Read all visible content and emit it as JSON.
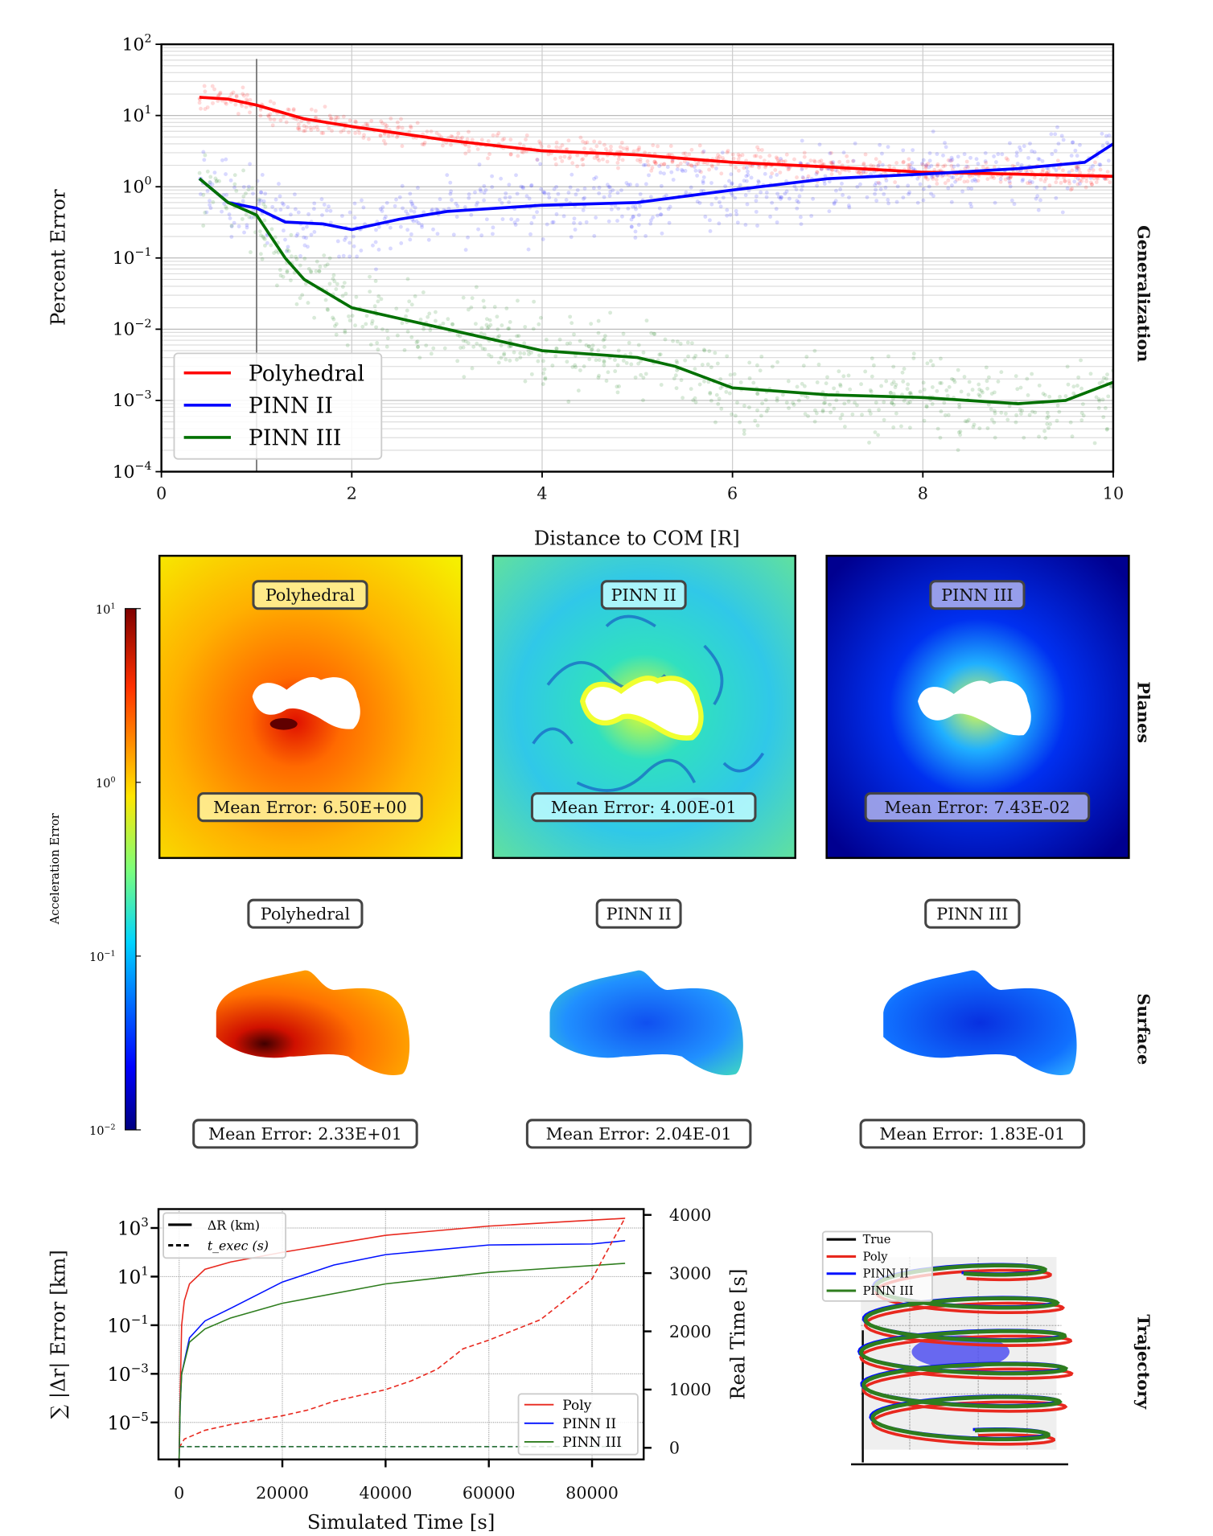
{
  "generalization": {
    "chart_data": {
      "type": "line",
      "xlabel": "Distance to COM [R]",
      "ylabel": "Percent Error",
      "row_label": "Generalization",
      "xlim": [
        0,
        10
      ],
      "ylim": [
        0.0001,
        100
      ],
      "yscale": "log",
      "grid": true,
      "legend_position": "lower-left",
      "x_ticks": [
        "0",
        "2",
        "4",
        "6",
        "8",
        "10"
      ],
      "y_ticks": [
        {
          "base": "10",
          "exp": "2"
        },
        {
          "base": "10",
          "exp": "1"
        },
        {
          "base": "10",
          "exp": "0"
        },
        {
          "base": "10",
          "exp": "−1"
        },
        {
          "base": "10",
          "exp": "−2"
        },
        {
          "base": "10",
          "exp": "−3"
        },
        {
          "base": "10",
          "exp": "−4"
        }
      ],
      "reference_line_x": 1,
      "series": [
        {
          "name": "Polyhedral",
          "color": "#ff0000",
          "x": [
            0.4,
            0.7,
            1,
            1.5,
            2,
            3,
            4,
            5,
            6,
            7,
            8,
            9,
            10
          ],
          "y": [
            18,
            17,
            14,
            9,
            7,
            4.5,
            3.2,
            2.8,
            2.2,
            1.9,
            1.6,
            1.5,
            1.4
          ]
        },
        {
          "name": "PINN II",
          "color": "#0000ff",
          "x": [
            0.4,
            0.7,
            1,
            1.3,
            1.7,
            2,
            2.5,
            3,
            4,
            5,
            6,
            7,
            8,
            9,
            9.7,
            10
          ],
          "y": [
            1.3,
            0.6,
            0.5,
            0.32,
            0.3,
            0.25,
            0.35,
            0.45,
            0.55,
            0.6,
            0.9,
            1.3,
            1.5,
            1.8,
            2.2,
            4
          ]
        },
        {
          "name": "PINN III",
          "color": "#007000",
          "x": [
            0.4,
            0.7,
            1,
            1.3,
            1.5,
            2,
            3,
            4,
            5,
            5.4,
            6,
            7,
            8,
            9,
            9.5,
            10
          ],
          "y": [
            1.3,
            0.6,
            0.4,
            0.1,
            0.05,
            0.02,
            0.01,
            0.005,
            0.004,
            0.003,
            0.0015,
            0.0012,
            0.0011,
            0.0009,
            0.001,
            0.0018
          ]
        }
      ]
    }
  },
  "planes": {
    "row_label": "Planes",
    "panels": [
      {
        "title": "Polyhedral",
        "mean_error": "Mean Error:  6.50E+00"
      },
      {
        "title": "PINN II",
        "mean_error": "Mean Error:  4.00E-01"
      },
      {
        "title": "PINN III",
        "mean_error": "Mean Error:  7.43E-02"
      }
    ]
  },
  "surface": {
    "row_label": "Surface",
    "panels": [
      {
        "title": "Polyhedral",
        "mean_error": "Mean Error:  2.33E+01"
      },
      {
        "title": "PINN II",
        "mean_error": "Mean Error:  2.04E-01"
      },
      {
        "title": "PINN III",
        "mean_error": "Mean Error:  1.83E-01"
      }
    ]
  },
  "colorbar": {
    "label": "Acceleration Error",
    "scale": "log",
    "colormap": "jet",
    "ticks": [
      {
        "base": "10",
        "exp": "1"
      },
      {
        "base": "10",
        "exp": "0"
      },
      {
        "base": "10",
        "exp": "−1"
      },
      {
        "base": "10",
        "exp": "−2"
      }
    ]
  },
  "trajectory_error": {
    "chart_data": {
      "type": "line",
      "xlabel": "Simulated Time [s]",
      "ylabel": "∑ |Δr| Error [km]",
      "y2label": "Real Time [s]",
      "xlim": [
        -4000,
        90000
      ],
      "yscale": "log",
      "ylim": [
        3e-07,
        6000
      ],
      "y2lim": [
        -200,
        4100
      ],
      "grid": true,
      "x_ticks": [
        "0",
        "20000",
        "40000",
        "60000",
        "80000"
      ],
      "y_ticks": [
        {
          "base": "10",
          "exp": "3"
        },
        {
          "base": "10",
          "exp": "1"
        },
        {
          "base": "10",
          "exp": "−1"
        },
        {
          "base": "10",
          "exp": "−3"
        },
        {
          "base": "10",
          "exp": "−5"
        }
      ],
      "y2_ticks": [
        "4000",
        "3000",
        "2000",
        "1000",
        "0"
      ],
      "style_legend": [
        {
          "label": "ΔR (km)",
          "dash": "solid"
        },
        {
          "label": "t_exec (s)",
          "dash": "dashed"
        }
      ],
      "series": [
        {
          "name": "Poly",
          "color": "#e8281e",
          "x": [
            0,
            100,
            500,
            1000,
            2000,
            5000,
            10000,
            20000,
            40000,
            60000,
            86400
          ],
          "y": [
            3e-07,
            1e-05,
            0.1,
            1,
            5,
            20,
            40,
            100,
            500,
            1200,
            2500
          ]
        },
        {
          "name": "PINN II",
          "color": "#0010ff",
          "x": [
            0,
            200,
            500,
            2000,
            5000,
            10000,
            20000,
            30000,
            40000,
            60000,
            80000,
            86400
          ],
          "y": [
            3e-07,
            5e-05,
            0.001,
            0.03,
            0.15,
            0.5,
            6,
            30,
            80,
            200,
            220,
            300
          ]
        },
        {
          "name": "PINN III",
          "color": "#2e7d1e",
          "x": [
            0,
            200,
            500,
            2000,
            5000,
            10000,
            20000,
            40000,
            60000,
            86400
          ],
          "y": [
            3e-07,
            5e-05,
            0.001,
            0.02,
            0.07,
            0.2,
            0.8,
            5,
            15,
            35
          ]
        }
      ],
      "exec_series": [
        {
          "name": "Poly",
          "color": "#e8281e",
          "x": [
            0,
            1000,
            5000,
            10000,
            20000,
            25000,
            30000,
            40000,
            45000,
            50000,
            55000,
            60000,
            70000,
            80000,
            86400
          ],
          "y": [
            0,
            150,
            300,
            400,
            550,
            650,
            800,
            1000,
            1150,
            1350,
            1700,
            1850,
            2200,
            2900,
            3950
          ]
        },
        {
          "name": "PINN II",
          "color": "#0010ff",
          "x": [
            0,
            86400
          ],
          "y": [
            20,
            20
          ]
        },
        {
          "name": "PINN III",
          "color": "#2e7d1e",
          "x": [
            0,
            86400
          ],
          "y": [
            20,
            20
          ]
        }
      ]
    }
  },
  "trajectory": {
    "row_label": "Trajectory",
    "legend": [
      {
        "name": "True",
        "color": "#000000"
      },
      {
        "name": "Poly",
        "color": "#e8281e"
      },
      {
        "name": "PINN II",
        "color": "#0010ff"
      },
      {
        "name": "PINN III",
        "color": "#2e7d1e"
      }
    ]
  }
}
